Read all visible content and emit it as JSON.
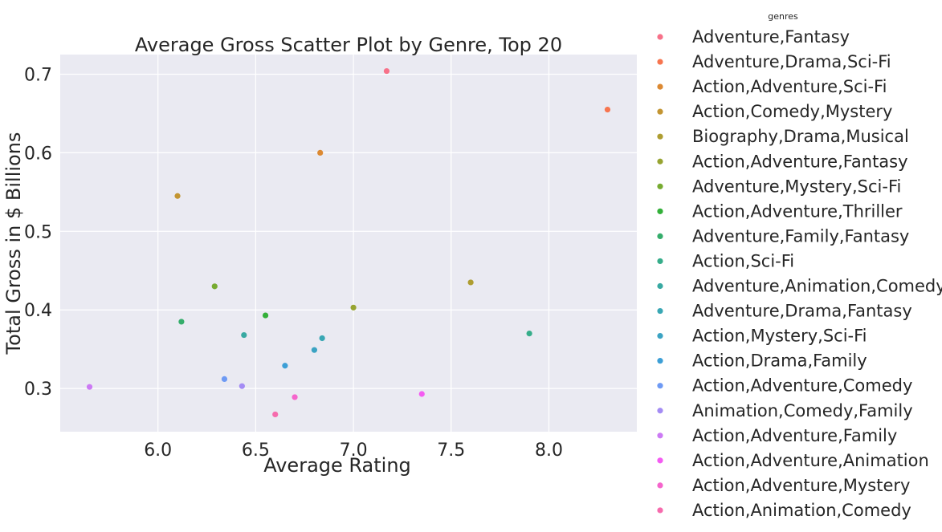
{
  "chart_data": {
    "type": "scatter",
    "title": "Average Gross Scatter Plot by Genre, Top 20",
    "xlabel": "Average Rating",
    "ylabel": "Total Gross in $ Billions",
    "xlim": [
      5.5,
      8.45
    ],
    "ylim": [
      0.245,
      0.725
    ],
    "xticks": [
      6.0,
      6.5,
      7.0,
      7.5,
      8.0
    ],
    "xtick_labels": [
      "6.0",
      "6.5",
      "7.0",
      "7.5",
      "8.0"
    ],
    "yticks": [
      0.3,
      0.4,
      0.5,
      0.6,
      0.7
    ],
    "ytick_labels": [
      "0.3",
      "0.4",
      "0.5",
      "0.6",
      "0.7"
    ],
    "grid": true,
    "background": "#eaeaf2",
    "grid_color": "#ffffff",
    "legend_title": "genres",
    "legend_position": "outside-right",
    "series": [
      {
        "name": "Adventure,Fantasy",
        "color": "#f77189",
        "points": [
          {
            "x": 7.17,
            "y": 0.704
          }
        ]
      },
      {
        "name": "Adventure,Drama,Sci-Fi",
        "color": "#f7754f",
        "points": [
          {
            "x": 8.3,
            "y": 0.655
          }
        ]
      },
      {
        "name": "Action,Adventure,Sci-Fi",
        "color": "#dc8932",
        "points": [
          {
            "x": 6.83,
            "y": 0.6
          }
        ]
      },
      {
        "name": "Action,Comedy,Mystery",
        "color": "#c39532",
        "points": [
          {
            "x": 6.1,
            "y": 0.545
          }
        ]
      },
      {
        "name": "Biography,Drama,Musical",
        "color": "#ae9d31",
        "points": [
          {
            "x": 7.6,
            "y": 0.435
          }
        ]
      },
      {
        "name": "Action,Adventure,Fantasy",
        "color": "#97a431",
        "points": [
          {
            "x": 7.0,
            "y": 0.403
          }
        ]
      },
      {
        "name": "Adventure,Mystery,Sci-Fi",
        "color": "#77ab31",
        "points": [
          {
            "x": 6.29,
            "y": 0.43
          }
        ]
      },
      {
        "name": "Action,Adventure,Thriller",
        "color": "#33b039",
        "points": [
          {
            "x": 6.55,
            "y": 0.393
          }
        ]
      },
      {
        "name": "Adventure,Family,Fantasy",
        "color": "#35ad6b",
        "points": [
          {
            "x": 6.12,
            "y": 0.385
          }
        ]
      },
      {
        "name": "Action,Sci-Fi",
        "color": "#36ad8a",
        "points": [
          {
            "x": 7.9,
            "y": 0.37
          }
        ]
      },
      {
        "name": "Adventure,Animation,Comedy",
        "color": "#38a9a2",
        "points": [
          {
            "x": 6.44,
            "y": 0.368
          }
        ]
      },
      {
        "name": "Adventure,Drama,Fantasy",
        "color": "#39a7b4",
        "points": [
          {
            "x": 6.84,
            "y": 0.364
          }
        ]
      },
      {
        "name": "Action,Mystery,Sci-Fi",
        "color": "#3ba3c3",
        "points": [
          {
            "x": 6.8,
            "y": 0.349
          }
        ]
      },
      {
        "name": "Action,Drama,Family",
        "color": "#3d9fd6",
        "points": [
          {
            "x": 6.65,
            "y": 0.329
          }
        ]
      },
      {
        "name": "Action,Adventure,Comedy",
        "color": "#6e9af4",
        "points": [
          {
            "x": 6.34,
            "y": 0.312
          }
        ]
      },
      {
        "name": "Animation,Comedy,Family",
        "color": "#a48cf4",
        "points": [
          {
            "x": 6.43,
            "y": 0.303
          }
        ]
      },
      {
        "name": "Action,Adventure,Family",
        "color": "#cc7af4",
        "points": [
          {
            "x": 5.65,
            "y": 0.302
          }
        ]
      },
      {
        "name": "Action,Adventure,Animation",
        "color": "#f45cf2",
        "points": [
          {
            "x": 7.35,
            "y": 0.293
          }
        ]
      },
      {
        "name": "Action,Adventure,Mystery",
        "color": "#f565cc",
        "points": [
          {
            "x": 6.7,
            "y": 0.289
          }
        ]
      },
      {
        "name": "Action,Animation,Comedy",
        "color": "#f66bad",
        "points": [
          {
            "x": 6.6,
            "y": 0.267
          }
        ]
      }
    ]
  }
}
